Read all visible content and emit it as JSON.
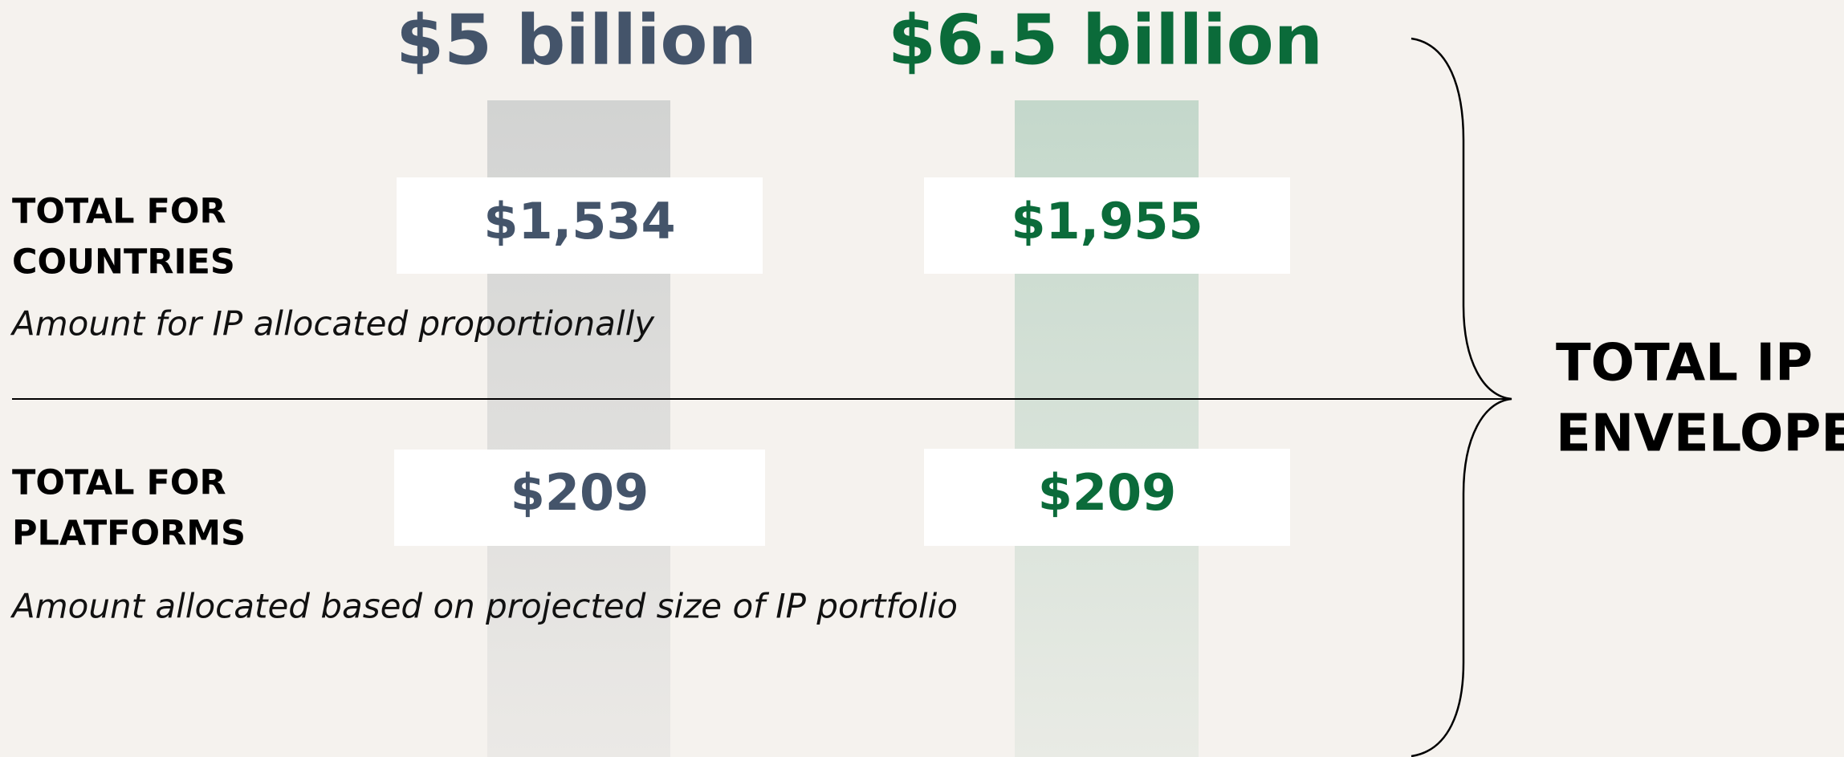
{
  "columns": [
    {
      "heading": "$5 billion",
      "countries": "$1,534",
      "platforms": "$209"
    },
    {
      "heading": "$6.5 billion",
      "countries": "$1,955",
      "platforms": "$209"
    }
  ],
  "rows": [
    {
      "label_line1": "TOTAL FOR",
      "label_line2": "COUNTRIES",
      "note": "Amount for IP allocated proportionally"
    },
    {
      "label_line1": "TOTAL FOR",
      "label_line2": "PLATFORMS",
      "note": "Amount allocated based on projected size of IP portfolio"
    }
  ],
  "envelope": {
    "line1": "TOTAL IP",
    "line2": "ENVELOPE"
  }
}
